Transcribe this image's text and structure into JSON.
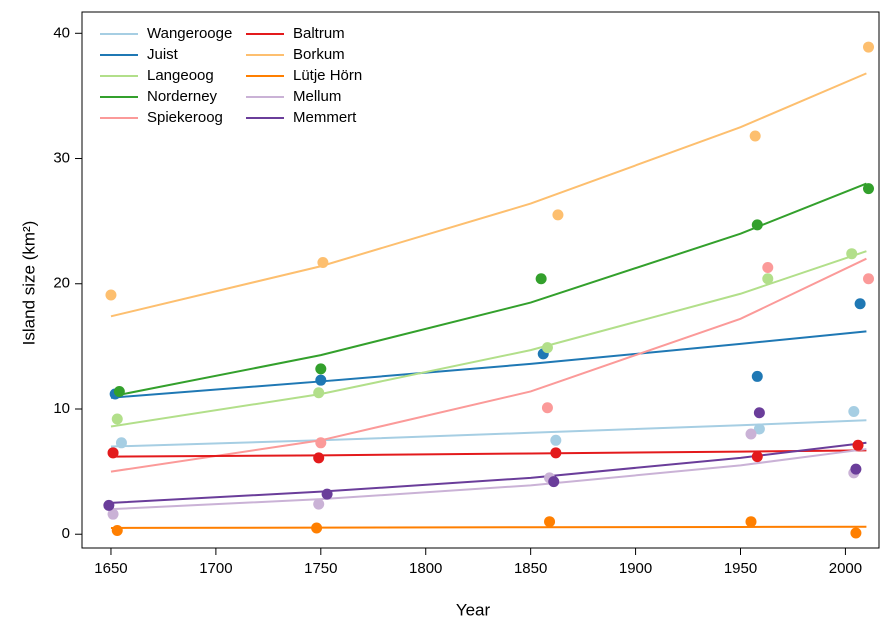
{
  "chart_data": {
    "type": "scatter",
    "xlabel": "Year",
    "ylabel": "Island size (km²)",
    "xlim": [
      1636.2,
      2016
    ],
    "ylim": [
      -1.1,
      41.7
    ],
    "xticks": [
      1650,
      1700,
      1750,
      1800,
      1850,
      1900,
      1950,
      2000
    ],
    "yticks": [
      0,
      10,
      20,
      30,
      40
    ],
    "legend": "upper left",
    "fit_x": [
      1650,
      1750,
      1850,
      1950,
      2010
    ],
    "series": [
      {
        "name": "Wangerooge",
        "color": "#a6cee3",
        "x": [
          1655,
          1862,
          1959,
          2004
        ],
        "values": [
          7.3,
          7.5,
          8.4,
          9.8
        ],
        "fit": [
          7.0,
          7.5,
          8.1,
          8.7,
          9.1
        ]
      },
      {
        "name": "Juist",
        "color": "#1f78b4",
        "x": [
          1652,
          1750,
          1856,
          1958,
          2007
        ],
        "values": [
          11.2,
          12.3,
          14.4,
          12.6,
          18.4
        ],
        "fit": [
          10.9,
          12.2,
          13.6,
          15.2,
          16.2
        ]
      },
      {
        "name": "Langeoog",
        "color": "#b2df8a",
        "x": [
          1653,
          1749,
          1858,
          1963,
          2003
        ],
        "values": [
          9.2,
          11.3,
          14.9,
          20.4,
          22.4
        ],
        "fit": [
          8.6,
          11.2,
          14.7,
          19.2,
          22.6
        ]
      },
      {
        "name": "Norderney",
        "color": "#33a02c",
        "x": [
          1654,
          1750,
          1855,
          1958,
          2011
        ],
        "values": [
          11.4,
          13.2,
          20.4,
          24.7,
          27.6
        ],
        "fit": [
          11.0,
          14.3,
          18.5,
          24.0,
          28.0
        ]
      },
      {
        "name": "Spiekeroog",
        "color": "#fb9a99",
        "x": [
          1651,
          1750,
          1858,
          1963,
          2011
        ],
        "values": [
          6.5,
          7.3,
          10.1,
          21.3,
          20.4
        ],
        "fit": [
          5.0,
          7.5,
          11.4,
          17.2,
          22.0
        ]
      },
      {
        "name": "Baltrum",
        "color": "#e31a1c",
        "x": [
          1651,
          1749,
          1862,
          1958,
          2006
        ],
        "values": [
          6.5,
          6.1,
          6.5,
          6.2,
          7.1
        ],
        "fit": [
          6.2,
          6.3,
          6.45,
          6.6,
          6.7
        ]
      },
      {
        "name": "Borkum",
        "color": "#fdbf6f",
        "x": [
          1650,
          1751,
          1863,
          1957,
          2011
        ],
        "values": [
          19.1,
          21.7,
          25.5,
          31.8,
          38.9
        ],
        "fit": [
          17.4,
          21.4,
          26.4,
          32.5,
          36.8
        ]
      },
      {
        "name": "Lütje Hörn",
        "color": "#ff7f00",
        "x": [
          1653,
          1748,
          1859,
          1955,
          2005
        ],
        "values": [
          0.3,
          0.5,
          1.0,
          1.0,
          0.1
        ],
        "fit": [
          0.5,
          0.53,
          0.56,
          0.58,
          0.6
        ]
      },
      {
        "name": "Mellum",
        "color": "#cab2d6",
        "x": [
          1651,
          1749,
          1859,
          1955,
          2004
        ],
        "values": [
          1.6,
          2.4,
          4.5,
          8.0,
          4.9
        ],
        "fit": [
          2.0,
          2.8,
          3.9,
          5.5,
          6.8
        ]
      },
      {
        "name": "Memmert",
        "color": "#6a3d9a",
        "x": [
          1649,
          1753,
          1861,
          1959,
          2005
        ],
        "values": [
          2.3,
          3.2,
          4.2,
          9.7,
          5.2
        ],
        "fit": [
          2.5,
          3.4,
          4.5,
          6.1,
          7.3
        ]
      }
    ]
  }
}
